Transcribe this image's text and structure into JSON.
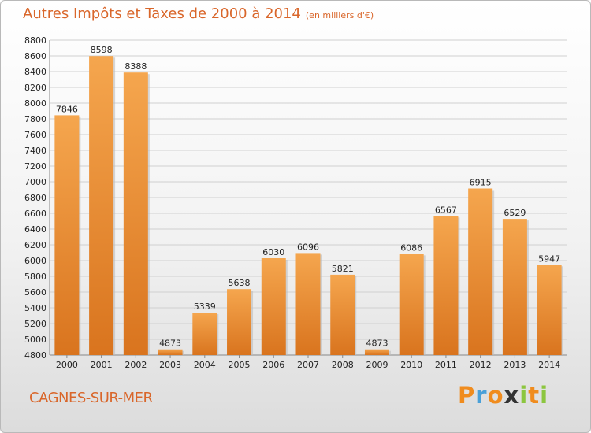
{
  "title": {
    "main": "Autres Impôts et Taxes de 2000 à 2014",
    "unit": "(en milliers d'€)"
  },
  "commune": "CAGNES-SUR-MER",
  "logo": {
    "text": "Proxiti",
    "letters": [
      {
        "char": "P",
        "color": "#f08c1e"
      },
      {
        "char": "r",
        "color": "#4aa0d8"
      },
      {
        "char": "o",
        "color": "#f08c1e"
      },
      {
        "char": "x",
        "color": "#333333"
      },
      {
        "char": "i",
        "color": "#8cc63f"
      },
      {
        "char": "t",
        "color": "#f08c1e"
      },
      {
        "char": "i",
        "color": "#8cc63f"
      }
    ]
  },
  "colors": {
    "title": "#d9662a",
    "bar_light": "#f5a64e",
    "bar_dark": "#d9741e",
    "grid": "#d0d0d0"
  },
  "chart_data": {
    "type": "bar",
    "categories": [
      "2000",
      "2001",
      "2002",
      "2003",
      "2004",
      "2005",
      "2006",
      "2007",
      "2008",
      "2009",
      "2010",
      "2011",
      "2012",
      "2013",
      "2014"
    ],
    "values": [
      7846,
      8598,
      8388,
      4873,
      5339,
      5638,
      6030,
      6096,
      5821,
      4873,
      6086,
      6567,
      6915,
      6529,
      5947
    ],
    "ylim": [
      4800,
      8800
    ],
    "yticks": [
      4800,
      5000,
      5200,
      5400,
      5600,
      5800,
      6000,
      6200,
      6400,
      6600,
      6800,
      7000,
      7200,
      7400,
      7600,
      7800,
      8000,
      8200,
      8400,
      8600,
      8800
    ],
    "grid": true,
    "xlabel": "",
    "ylabel": ""
  }
}
